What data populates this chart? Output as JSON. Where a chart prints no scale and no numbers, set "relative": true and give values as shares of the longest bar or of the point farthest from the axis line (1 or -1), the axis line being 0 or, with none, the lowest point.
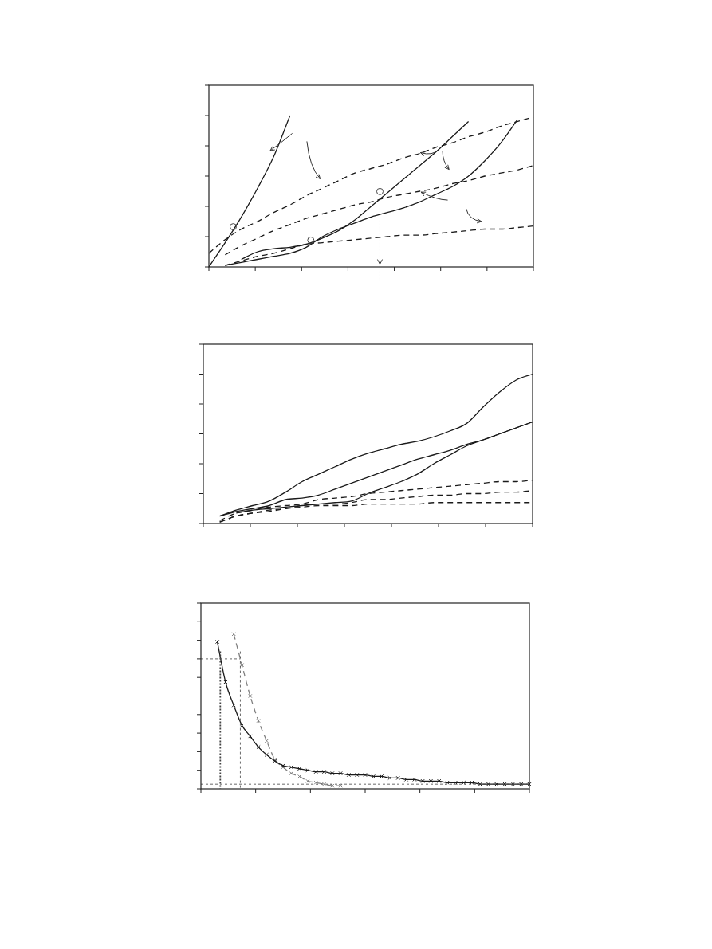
{
  "chart_data": [
    {
      "type": "line",
      "relative": true,
      "categories": [
        null,
        null,
        null,
        null,
        null,
        null,
        null,
        null,
        null,
        null,
        null,
        null,
        null,
        null,
        null,
        null,
        null,
        null,
        null,
        null,
        null
      ],
      "series": [
        {
          "color": "#1a1a1a",
          "line_style": "solid",
          "values": [
            0,
            0.16,
            0.33,
            0.52,
            0.73,
            1,
            null,
            null,
            null,
            null,
            null,
            null,
            null,
            null,
            null,
            null,
            null,
            null,
            null,
            null,
            null
          ]
        },
        {
          "color": "#1a1a1a",
          "line_style": "solid",
          "values": [
            null,
            null,
            0.05,
            0.1,
            0.12,
            0.13,
            0.15,
            0.19,
            0.24,
            0.31,
            0.4,
            0.49,
            0.58,
            0.67,
            0.76,
            0.86,
            0.96,
            null,
            null,
            null,
            null
          ]
        },
        {
          "color": "#1a1a1a",
          "line_style": "solid",
          "values": [
            null,
            0.01,
            0.03,
            0.05,
            0.07,
            0.09,
            0.13,
            0.2,
            0.25,
            0.29,
            0.33,
            0.36,
            0.39,
            0.43,
            0.48,
            0.53,
            0.6,
            0.7,
            0.82,
            0.97,
            null
          ]
        },
        {
          "color": "#1a1a1a",
          "line_style": "dashed",
          "values": [
            0.09,
            0.18,
            0.25,
            0.3,
            0.36,
            0.41,
            0.47,
            0.52,
            0.57,
            0.62,
            0.65,
            0.68,
            0.72,
            0.75,
            0.79,
            0.82,
            0.86,
            0.89,
            0.93,
            0.96,
            0.99
          ]
        },
        {
          "color": "#1a1a1a",
          "line_style": "dashed",
          "values": [
            null,
            0.08,
            0.14,
            0.19,
            0.24,
            0.28,
            0.32,
            0.35,
            0.38,
            0.41,
            0.43,
            0.46,
            0.48,
            0.5,
            0.52,
            0.55,
            0.57,
            0.6,
            0.62,
            0.64,
            0.67
          ]
        },
        {
          "color": "#1a1a1a",
          "line_style": "dashed",
          "values": [
            null,
            0.01,
            0.04,
            0.07,
            0.09,
            0.12,
            0.15,
            0.16,
            0.17,
            0.18,
            0.19,
            0.2,
            0.21,
            0.21,
            0.22,
            0.23,
            0.24,
            0.25,
            0.25,
            0.26,
            0.27
          ]
        }
      ]
    },
    {
      "type": "line",
      "relative": true,
      "categories": [
        null,
        null,
        null,
        null,
        null,
        null,
        null,
        null,
        null,
        null,
        null,
        null,
        null,
        null,
        null,
        null,
        null,
        null,
        null,
        null,
        null
      ],
      "series": [
        {
          "color": "#1a1a1a",
          "line_style": "solid",
          "values": [
            null,
            0.05,
            0.09,
            0.12,
            0.15,
            0.21,
            0.28,
            0.33,
            0.38,
            0.43,
            0.47,
            0.5,
            0.53,
            0.55,
            0.58,
            0.62,
            0.67,
            0.78,
            0.88,
            0.96,
            1
          ]
        },
        {
          "color": "#1a1a1a",
          "line_style": "solid",
          "values": [
            null,
            0.05,
            0.08,
            0.1,
            0.12,
            0.16,
            0.17,
            0.19,
            0.23,
            0.27,
            0.31,
            0.35,
            0.39,
            0.43,
            0.46,
            0.49,
            0.53,
            0.56,
            0.6,
            0.64,
            0.68
          ]
        },
        {
          "color": "#1a1a1a",
          "line_style": "solid",
          "values": [
            null,
            null,
            0.07,
            0.09,
            0.1,
            0.11,
            0.12,
            0.13,
            0.14,
            0.15,
            0.2,
            0.24,
            0.28,
            0.33,
            0.4,
            0.46,
            0.52,
            0.56,
            0.6,
            0.64,
            0.68
          ]
        },
        {
          "color": "#1a1a1a",
          "line_style": "dashed",
          "values": [
            null,
            0.02,
            0.07,
            0.09,
            0.11,
            0.12,
            0.13,
            0.16,
            0.17,
            0.18,
            0.2,
            0.21,
            0.22,
            0.23,
            0.24,
            0.25,
            0.26,
            0.27,
            0.28,
            0.28,
            0.29
          ]
        },
        {
          "color": "#1a1a1a",
          "line_style": "dashed",
          "values": [
            null,
            0.01,
            0.05,
            0.07,
            0.09,
            0.1,
            0.12,
            0.13,
            0.13,
            0.14,
            0.16,
            0.16,
            0.17,
            0.18,
            0.19,
            0.19,
            0.2,
            0.2,
            0.21,
            0.21,
            0.22
          ]
        },
        {
          "color": "#1a1a1a",
          "line_style": "dashed",
          "values": [
            null,
            0.01,
            0.05,
            0.07,
            0.08,
            0.1,
            0.11,
            0.12,
            0.12,
            0.12,
            0.13,
            0.13,
            0.13,
            0.13,
            0.14,
            0.14,
            0.14,
            0.14,
            0.14,
            0.14,
            0.14
          ]
        }
      ]
    },
    {
      "type": "line",
      "relative": true,
      "marker": "cross",
      "ref_lines": [
        {
          "axis": "y",
          "value": 0.84,
          "line_style": "dashed"
        },
        {
          "axis": "y",
          "value": 0.03,
          "line_style": "dashed"
        }
      ],
      "categories": [
        null,
        null,
        null,
        null,
        null,
        null,
        null,
        null,
        null,
        null,
        null,
        null,
        null,
        null,
        null,
        null,
        null,
        null,
        null,
        null,
        null,
        null,
        null,
        null,
        null,
        null,
        null,
        null,
        null,
        null,
        null,
        null,
        null,
        null,
        null,
        null,
        null,
        null,
        null,
        null,
        null
      ],
      "series": [
        {
          "color": "#1a1a1a",
          "line_style": "solid",
          "values": [
            null,
            null,
            0.95,
            0.69,
            0.54,
            0.41,
            0.34,
            0.27,
            0.22,
            0.18,
            0.15,
            0.14,
            0.13,
            0.12,
            0.11,
            0.11,
            0.1,
            0.1,
            0.09,
            0.09,
            0.09,
            0.08,
            0.08,
            0.07,
            0.07,
            0.06,
            0.06,
            0.05,
            0.05,
            0.05,
            0.04,
            0.04,
            0.04,
            0.04,
            0.03,
            0.03,
            0.03,
            0.03,
            0.03,
            0.03,
            0.03
          ]
        },
        {
          "color": "#808080",
          "line_style": "dashed",
          "values": [
            null,
            null,
            null,
            null,
            1,
            0.8,
            0.6,
            0.44,
            0.31,
            0.19,
            0.14,
            0.1,
            0.08,
            0.05,
            0.04,
            0.03,
            0.02,
            0.02,
            null,
            null,
            null,
            null,
            null,
            null,
            null,
            null,
            null,
            null,
            null,
            null,
            null,
            null,
            null,
            null,
            null,
            null,
            null,
            null,
            null,
            null,
            null
          ]
        }
      ]
    }
  ]
}
